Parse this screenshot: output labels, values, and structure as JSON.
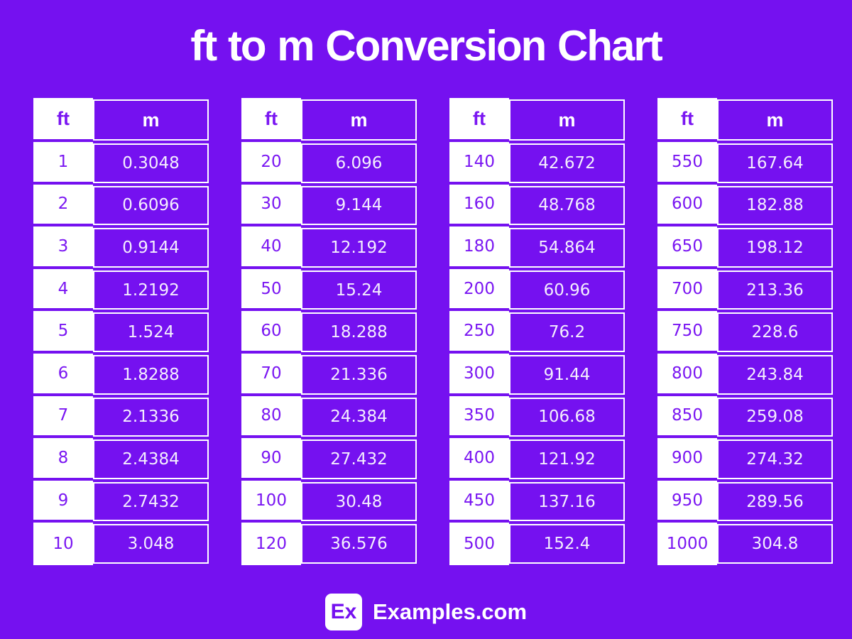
{
  "chart_data": {
    "type": "table",
    "title": "ft to m Conversion Chart",
    "columns": [
      "ft",
      "m"
    ],
    "tables": [
      {
        "rows": [
          [
            "1",
            "0.3048"
          ],
          [
            "2",
            "0.6096"
          ],
          [
            "3",
            "0.9144"
          ],
          [
            "4",
            "1.2192"
          ],
          [
            "5",
            "1.524"
          ],
          [
            "6",
            "1.8288"
          ],
          [
            "7",
            "2.1336"
          ],
          [
            "8",
            "2.4384"
          ],
          [
            "9",
            "2.7432"
          ],
          [
            "10",
            "3.048"
          ]
        ]
      },
      {
        "rows": [
          [
            "20",
            "6.096"
          ],
          [
            "30",
            "9.144"
          ],
          [
            "40",
            "12.192"
          ],
          [
            "50",
            "15.24"
          ],
          [
            "60",
            "18.288"
          ],
          [
            "70",
            "21.336"
          ],
          [
            "80",
            "24.384"
          ],
          [
            "90",
            "27.432"
          ],
          [
            "100",
            "30.48"
          ],
          [
            "120",
            "36.576"
          ]
        ]
      },
      {
        "rows": [
          [
            "140",
            "42.672"
          ],
          [
            "160",
            "48.768"
          ],
          [
            "180",
            "54.864"
          ],
          [
            "200",
            "60.96"
          ],
          [
            "250",
            "76.2"
          ],
          [
            "300",
            "91.44"
          ],
          [
            "350",
            "106.68"
          ],
          [
            "400",
            "121.92"
          ],
          [
            "450",
            "137.16"
          ],
          [
            "500",
            "152.4"
          ]
        ]
      },
      {
        "rows": [
          [
            "550",
            "167.64"
          ],
          [
            "600",
            "182.88"
          ],
          [
            "650",
            "198.12"
          ],
          [
            "700",
            "213.36"
          ],
          [
            "750",
            "228.6"
          ],
          [
            "800",
            "243.84"
          ],
          [
            "850",
            "259.08"
          ],
          [
            "900",
            "274.32"
          ],
          [
            "950",
            "289.56"
          ],
          [
            "1000",
            "304.8"
          ]
        ]
      }
    ]
  },
  "footer": {
    "badge_text": "Ex",
    "brand": "Examples.com"
  },
  "colors": {
    "background": "#7511F0",
    "cell_fill": "#7511F0",
    "cell_border": "#FFFFFF",
    "ft_cell_background": "#FFFFFF",
    "ft_text": "#7A16F2",
    "m_text": "#F4EEFE",
    "title_text": "#FFFFFF"
  }
}
